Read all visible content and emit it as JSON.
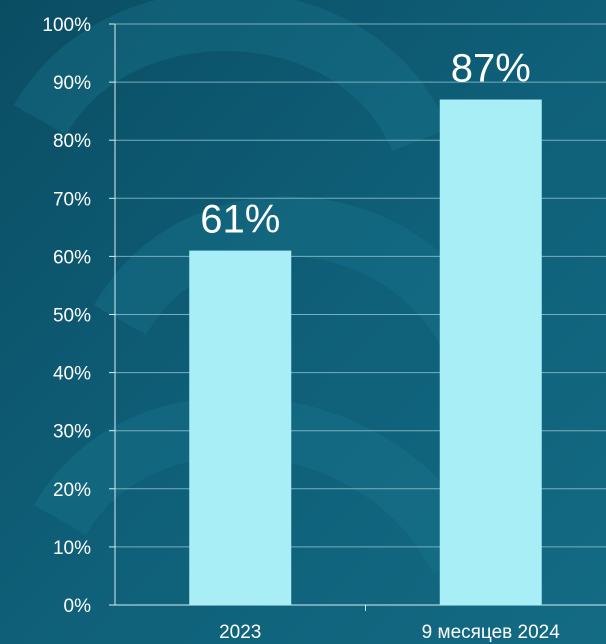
{
  "colors": {
    "background": "#0f5f78",
    "background_dark": "#0a4d63",
    "background_light": "#19778f",
    "bar": "#a8eef7",
    "grid": "#8cc4d2",
    "axis": "#d7eef3",
    "text": "#ffffff"
  },
  "chart_data": {
    "type": "bar",
    "categories": [
      "2023",
      "9 месяцев 2024"
    ],
    "values": [
      61,
      87
    ],
    "data_labels": [
      "61%",
      "87%"
    ],
    "y_ticks": [
      "0%",
      "10%",
      "20%",
      "30%",
      "40%",
      "50%",
      "60%",
      "70%",
      "80%",
      "90%",
      "100%"
    ],
    "ylim": [
      0,
      100
    ],
    "grid": true,
    "legend": "none"
  }
}
